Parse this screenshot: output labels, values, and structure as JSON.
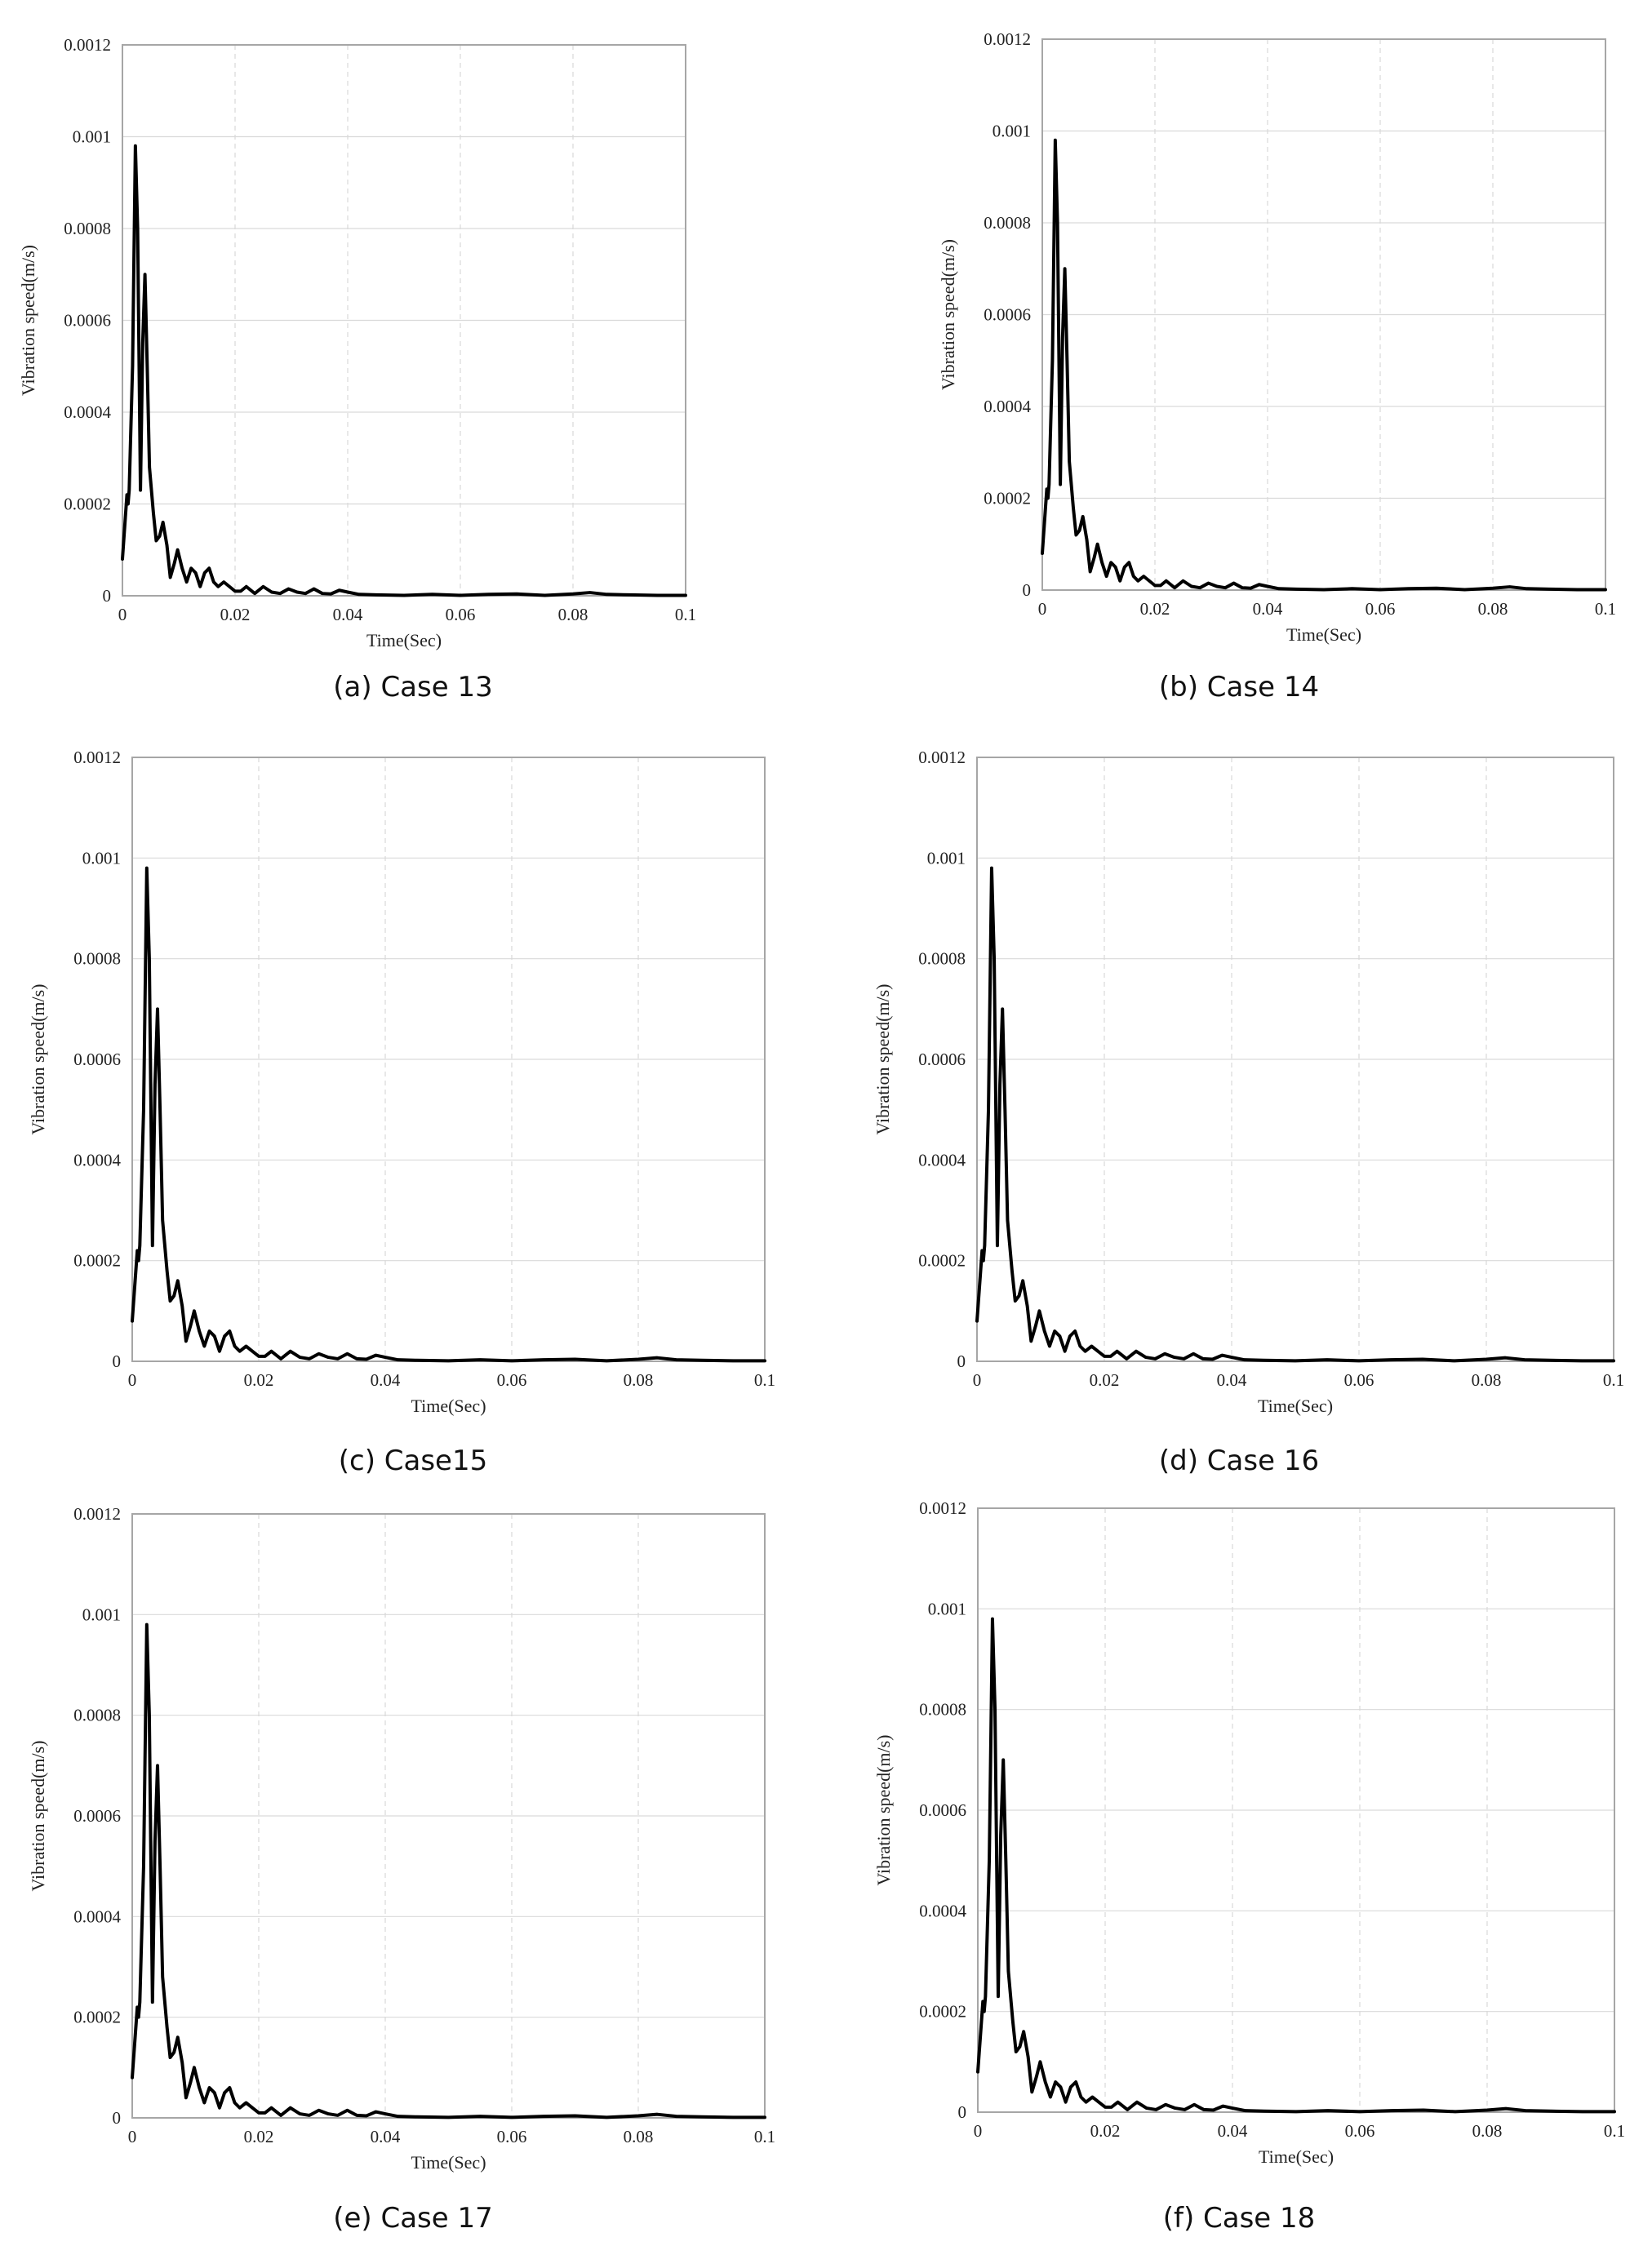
{
  "chart_data": [
    {
      "type": "line",
      "caption": "(a)  Case 13",
      "xlabel": "Time(Sec)",
      "ylabel": "Vibration speed(m/s)",
      "xlim": [
        0,
        0.1
      ],
      "ylim": [
        0,
        0.0012
      ],
      "xticks": [
        "0",
        "0.02",
        "0.04",
        "0.06",
        "0.08",
        "0.1"
      ],
      "yticks": [
        "0",
        "0.0002",
        "0.0004",
        "0.0006",
        "0.0008",
        "0.001",
        "0.0012"
      ],
      "grid": "horizontal solid, vertical dashed",
      "series": [
        {
          "x": [
            0,
            0.0008,
            0.001,
            0.0012,
            0.0018,
            0.0023,
            0.0027,
            0.0032,
            0.0036,
            0.004,
            0.0044,
            0.0048,
            0.0055,
            0.006,
            0.0066,
            0.0072,
            0.0079,
            0.0085,
            0.0092,
            0.0098,
            0.0106,
            0.0114,
            0.0122,
            0.013,
            0.0138,
            0.0146,
            0.0154,
            0.0162,
            0.017,
            0.018,
            0.019,
            0.02,
            0.021,
            0.022,
            0.0235,
            0.025,
            0.0265,
            0.028,
            0.0295,
            0.031,
            0.0325,
            0.034,
            0.0355,
            0.037,
            0.0385,
            0.04,
            0.042,
            0.045,
            0.05,
            0.055,
            0.06,
            0.065,
            0.07,
            0.075,
            0.08,
            0.083,
            0.086,
            0.09,
            0.095,
            0.1
          ],
          "y": [
            8e-05,
            0.00022,
            0.0002,
            0.00023,
            0.0005,
            0.00098,
            0.0008,
            0.00023,
            0.00055,
            0.0007,
            0.0005,
            0.00028,
            0.00018,
            0.00012,
            0.00013,
            0.00016,
            0.00011,
            4e-05,
            7e-05,
            0.0001,
            6e-05,
            3e-05,
            6e-05,
            5e-05,
            2e-05,
            5e-05,
            6e-05,
            3e-05,
            2e-05,
            3e-05,
            2e-05,
            1e-05,
            1e-05,
            2e-05,
            5e-06,
            2e-05,
            8e-06,
            5e-06,
            1.5e-05,
            8e-06,
            5e-06,
            1.5e-05,
            5e-06,
            4e-06,
            1.2e-05,
            8e-06,
            3e-06,
            2e-06,
            1e-06,
            3e-06,
            1e-06,
            3e-06,
            4e-06,
            1e-06,
            4e-06,
            7e-06,
            3e-06,
            2e-06,
            1e-06,
            1e-06
          ]
        }
      ]
    },
    {
      "type": "line",
      "caption": "(b)  Case 14",
      "xlabel": "Time(Sec)",
      "ylabel": "Vibration speed(m/s)",
      "xlim": [
        0,
        0.1
      ],
      "ylim": [
        0,
        0.0012
      ],
      "xticks": [
        "0",
        "0.02",
        "0.04",
        "0.06",
        "0.08",
        "0.1"
      ],
      "yticks": [
        "0",
        "0.0002",
        "0.0004",
        "0.0006",
        "0.0008",
        "0.001",
        "0.0012"
      ],
      "grid": "horizontal solid, vertical dashed",
      "series": [
        {
          "x": [
            0,
            0.0008,
            0.001,
            0.0012,
            0.0018,
            0.0023,
            0.0027,
            0.0032,
            0.0036,
            0.004,
            0.0044,
            0.0048,
            0.0055,
            0.006,
            0.0066,
            0.0072,
            0.0079,
            0.0085,
            0.0092,
            0.0098,
            0.0106,
            0.0114,
            0.0122,
            0.013,
            0.0138,
            0.0146,
            0.0154,
            0.0162,
            0.017,
            0.018,
            0.019,
            0.02,
            0.021,
            0.022,
            0.0235,
            0.025,
            0.0265,
            0.028,
            0.0295,
            0.031,
            0.0325,
            0.034,
            0.0355,
            0.037,
            0.0385,
            0.04,
            0.042,
            0.045,
            0.05,
            0.055,
            0.06,
            0.065,
            0.07,
            0.075,
            0.08,
            0.083,
            0.086,
            0.09,
            0.095,
            0.1
          ],
          "y": [
            8e-05,
            0.00022,
            0.0002,
            0.00023,
            0.0005,
            0.00098,
            0.0008,
            0.00023,
            0.00055,
            0.0007,
            0.0005,
            0.00028,
            0.00018,
            0.00012,
            0.00013,
            0.00016,
            0.00011,
            4e-05,
            7e-05,
            0.0001,
            6e-05,
            3e-05,
            6e-05,
            5e-05,
            2e-05,
            5e-05,
            6e-05,
            3e-05,
            2e-05,
            3e-05,
            2e-05,
            1e-05,
            1e-05,
            2e-05,
            5e-06,
            2e-05,
            8e-06,
            5e-06,
            1.5e-05,
            8e-06,
            5e-06,
            1.5e-05,
            5e-06,
            4e-06,
            1.2e-05,
            8e-06,
            3e-06,
            2e-06,
            1e-06,
            3e-06,
            1e-06,
            3e-06,
            4e-06,
            1e-06,
            4e-06,
            7e-06,
            3e-06,
            2e-06,
            1e-06,
            1e-06
          ]
        }
      ]
    },
    {
      "type": "line",
      "caption": "(c)  Case15",
      "xlabel": "Time(Sec)",
      "ylabel": "Vibration speed(m/s)",
      "xlim": [
        0,
        0.1
      ],
      "ylim": [
        0,
        0.0012
      ],
      "xticks": [
        "0",
        "0.02",
        "0.04",
        "0.06",
        "0.08",
        "0.1"
      ],
      "yticks": [
        "0",
        "0.0002",
        "0.0004",
        "0.0006",
        "0.0008",
        "0.001",
        "0.0012"
      ],
      "grid": "horizontal solid, vertical dashed",
      "series": [
        {
          "x": [
            0,
            0.0008,
            0.001,
            0.0012,
            0.0018,
            0.0023,
            0.0027,
            0.0032,
            0.0036,
            0.004,
            0.0044,
            0.0048,
            0.0055,
            0.006,
            0.0066,
            0.0072,
            0.0079,
            0.0085,
            0.0092,
            0.0098,
            0.0106,
            0.0114,
            0.0122,
            0.013,
            0.0138,
            0.0146,
            0.0154,
            0.0162,
            0.017,
            0.018,
            0.019,
            0.02,
            0.021,
            0.022,
            0.0235,
            0.025,
            0.0265,
            0.028,
            0.0295,
            0.031,
            0.0325,
            0.034,
            0.0355,
            0.037,
            0.0385,
            0.04,
            0.042,
            0.045,
            0.05,
            0.055,
            0.06,
            0.065,
            0.07,
            0.075,
            0.08,
            0.083,
            0.086,
            0.09,
            0.095,
            0.1
          ],
          "y": [
            8e-05,
            0.00022,
            0.0002,
            0.00023,
            0.0005,
            0.00098,
            0.0008,
            0.00023,
            0.00055,
            0.0007,
            0.0005,
            0.00028,
            0.00018,
            0.00012,
            0.00013,
            0.00016,
            0.00011,
            4e-05,
            7e-05,
            0.0001,
            6e-05,
            3e-05,
            6e-05,
            5e-05,
            2e-05,
            5e-05,
            6e-05,
            3e-05,
            2e-05,
            3e-05,
            2e-05,
            1e-05,
            1e-05,
            2e-05,
            5e-06,
            2e-05,
            8e-06,
            5e-06,
            1.5e-05,
            8e-06,
            5e-06,
            1.5e-05,
            5e-06,
            4e-06,
            1.2e-05,
            8e-06,
            3e-06,
            2e-06,
            1e-06,
            3e-06,
            1e-06,
            3e-06,
            4e-06,
            1e-06,
            4e-06,
            7e-06,
            3e-06,
            2e-06,
            1e-06,
            1e-06
          ]
        }
      ]
    },
    {
      "type": "line",
      "caption": "(d)  Case 16",
      "xlabel": "Time(Sec)",
      "ylabel": "Vibration speed(m/s)",
      "xlim": [
        0,
        0.1
      ],
      "ylim": [
        0,
        0.0012
      ],
      "xticks": [
        "0",
        "0.02",
        "0.04",
        "0.06",
        "0.08",
        "0.1"
      ],
      "yticks": [
        "0",
        "0.0002",
        "0.0004",
        "0.0006",
        "0.0008",
        "0.001",
        "0.0012"
      ],
      "grid": "horizontal solid, vertical dashed",
      "series": [
        {
          "x": [
            0,
            0.0008,
            0.001,
            0.0012,
            0.0018,
            0.0023,
            0.0027,
            0.0032,
            0.0036,
            0.004,
            0.0044,
            0.0048,
            0.0055,
            0.006,
            0.0066,
            0.0072,
            0.0079,
            0.0085,
            0.0092,
            0.0098,
            0.0106,
            0.0114,
            0.0122,
            0.013,
            0.0138,
            0.0146,
            0.0154,
            0.0162,
            0.017,
            0.018,
            0.019,
            0.02,
            0.021,
            0.022,
            0.0235,
            0.025,
            0.0265,
            0.028,
            0.0295,
            0.031,
            0.0325,
            0.034,
            0.0355,
            0.037,
            0.0385,
            0.04,
            0.042,
            0.045,
            0.05,
            0.055,
            0.06,
            0.065,
            0.07,
            0.075,
            0.08,
            0.083,
            0.086,
            0.09,
            0.095,
            0.1
          ],
          "y": [
            8e-05,
            0.00022,
            0.0002,
            0.00023,
            0.0005,
            0.00098,
            0.0008,
            0.00023,
            0.00055,
            0.0007,
            0.0005,
            0.00028,
            0.00018,
            0.00012,
            0.00013,
            0.00016,
            0.00011,
            4e-05,
            7e-05,
            0.0001,
            6e-05,
            3e-05,
            6e-05,
            5e-05,
            2e-05,
            5e-05,
            6e-05,
            3e-05,
            2e-05,
            3e-05,
            2e-05,
            1e-05,
            1e-05,
            2e-05,
            5e-06,
            2e-05,
            8e-06,
            5e-06,
            1.5e-05,
            8e-06,
            5e-06,
            1.5e-05,
            5e-06,
            4e-06,
            1.2e-05,
            8e-06,
            3e-06,
            2e-06,
            1e-06,
            3e-06,
            1e-06,
            3e-06,
            4e-06,
            1e-06,
            4e-06,
            7e-06,
            3e-06,
            2e-06,
            1e-06,
            1e-06
          ]
        }
      ]
    },
    {
      "type": "line",
      "caption": "(e)  Case 17",
      "xlabel": "Time(Sec)",
      "ylabel": "Vibration speed(m/s)",
      "xlim": [
        0,
        0.1
      ],
      "ylim": [
        0,
        0.0012
      ],
      "xticks": [
        "0",
        "0.02",
        "0.04",
        "0.06",
        "0.08",
        "0.1"
      ],
      "yticks": [
        "0",
        "0.0002",
        "0.0004",
        "0.0006",
        "0.0008",
        "0.001",
        "0.0012"
      ],
      "grid": "horizontal solid, vertical dashed",
      "series": [
        {
          "x": [
            0,
            0.0008,
            0.001,
            0.0012,
            0.0018,
            0.0023,
            0.0027,
            0.0032,
            0.0036,
            0.004,
            0.0044,
            0.0048,
            0.0055,
            0.006,
            0.0066,
            0.0072,
            0.0079,
            0.0085,
            0.0092,
            0.0098,
            0.0106,
            0.0114,
            0.0122,
            0.013,
            0.0138,
            0.0146,
            0.0154,
            0.0162,
            0.017,
            0.018,
            0.019,
            0.02,
            0.021,
            0.022,
            0.0235,
            0.025,
            0.0265,
            0.028,
            0.0295,
            0.031,
            0.0325,
            0.034,
            0.0355,
            0.037,
            0.0385,
            0.04,
            0.042,
            0.045,
            0.05,
            0.055,
            0.06,
            0.065,
            0.07,
            0.075,
            0.08,
            0.083,
            0.086,
            0.09,
            0.095,
            0.1
          ],
          "y": [
            8e-05,
            0.00022,
            0.0002,
            0.00023,
            0.0005,
            0.00098,
            0.0008,
            0.00023,
            0.00055,
            0.0007,
            0.0005,
            0.00028,
            0.00018,
            0.00012,
            0.00013,
            0.00016,
            0.00011,
            4e-05,
            7e-05,
            0.0001,
            6e-05,
            3e-05,
            6e-05,
            5e-05,
            2e-05,
            5e-05,
            6e-05,
            3e-05,
            2e-05,
            3e-05,
            2e-05,
            1e-05,
            1e-05,
            2e-05,
            5e-06,
            2e-05,
            8e-06,
            5e-06,
            1.5e-05,
            8e-06,
            5e-06,
            1.5e-05,
            5e-06,
            4e-06,
            1.2e-05,
            8e-06,
            3e-06,
            2e-06,
            1e-06,
            3e-06,
            1e-06,
            3e-06,
            4e-06,
            1e-06,
            4e-06,
            7e-06,
            3e-06,
            2e-06,
            1e-06,
            1e-06
          ]
        }
      ]
    },
    {
      "type": "line",
      "caption": "(f)  Case 18",
      "xlabel": "Time(Sec)",
      "ylabel": "Vibration speed(m/s)",
      "xlim": [
        0,
        0.1
      ],
      "ylim": [
        0,
        0.0012
      ],
      "xticks": [
        "0",
        "0.02",
        "0.04",
        "0.06",
        "0.08",
        "0.1"
      ],
      "yticks": [
        "0",
        "0.0002",
        "0.0004",
        "0.0006",
        "0.0008",
        "0.001",
        "0.0012"
      ],
      "grid": "horizontal solid, vertical dashed",
      "series": [
        {
          "x": [
            0,
            0.0008,
            0.001,
            0.0012,
            0.0018,
            0.0023,
            0.0027,
            0.0032,
            0.0036,
            0.004,
            0.0044,
            0.0048,
            0.0055,
            0.006,
            0.0066,
            0.0072,
            0.0079,
            0.0085,
            0.0092,
            0.0098,
            0.0106,
            0.0114,
            0.0122,
            0.013,
            0.0138,
            0.0146,
            0.0154,
            0.0162,
            0.017,
            0.018,
            0.019,
            0.02,
            0.021,
            0.022,
            0.0235,
            0.025,
            0.0265,
            0.028,
            0.0295,
            0.031,
            0.0325,
            0.034,
            0.0355,
            0.037,
            0.0385,
            0.04,
            0.042,
            0.045,
            0.05,
            0.055,
            0.06,
            0.065,
            0.07,
            0.075,
            0.08,
            0.083,
            0.086,
            0.09,
            0.095,
            0.1
          ],
          "y": [
            8e-05,
            0.00022,
            0.0002,
            0.00023,
            0.0005,
            0.00098,
            0.0008,
            0.00023,
            0.00055,
            0.0007,
            0.0005,
            0.00028,
            0.00018,
            0.00012,
            0.00013,
            0.00016,
            0.00011,
            4e-05,
            7e-05,
            0.0001,
            6e-05,
            3e-05,
            6e-05,
            5e-05,
            2e-05,
            5e-05,
            6e-05,
            3e-05,
            2e-05,
            3e-05,
            2e-05,
            1e-05,
            1e-05,
            2e-05,
            5e-06,
            2e-05,
            8e-06,
            5e-06,
            1.5e-05,
            8e-06,
            5e-06,
            1.5e-05,
            5e-06,
            4e-06,
            1.2e-05,
            8e-06,
            3e-06,
            2e-06,
            1e-06,
            3e-06,
            1e-06,
            3e-06,
            4e-06,
            1e-06,
            4e-06,
            7e-06,
            3e-06,
            2e-06,
            1e-06,
            1e-06
          ]
        }
      ]
    }
  ]
}
